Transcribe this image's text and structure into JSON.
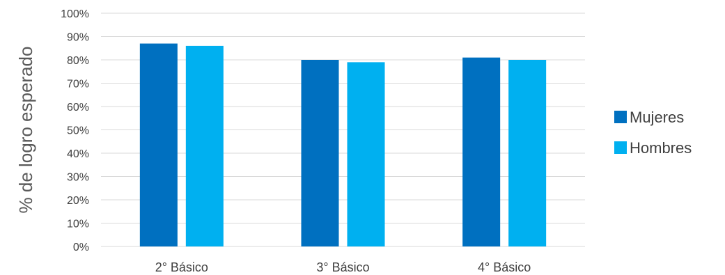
{
  "chart_data": {
    "type": "bar",
    "categories": [
      "2° Básico",
      "3° Básico",
      "4° Básico"
    ],
    "series": [
      {
        "name": "Mujeres",
        "values": [
          87,
          80,
          81
        ],
        "color": "#0070c0"
      },
      {
        "name": "Hombres",
        "values": [
          86,
          79,
          80
        ],
        "color": "#00b0f0"
      }
    ],
    "ylabel": "% de logro esperado",
    "xlabel": "",
    "ylim": [
      0,
      100
    ],
    "ytick_step": 10,
    "ytick_suffix": "%",
    "grid": true,
    "gridline_color": "#d9d9d9",
    "legend_position": "right"
  }
}
